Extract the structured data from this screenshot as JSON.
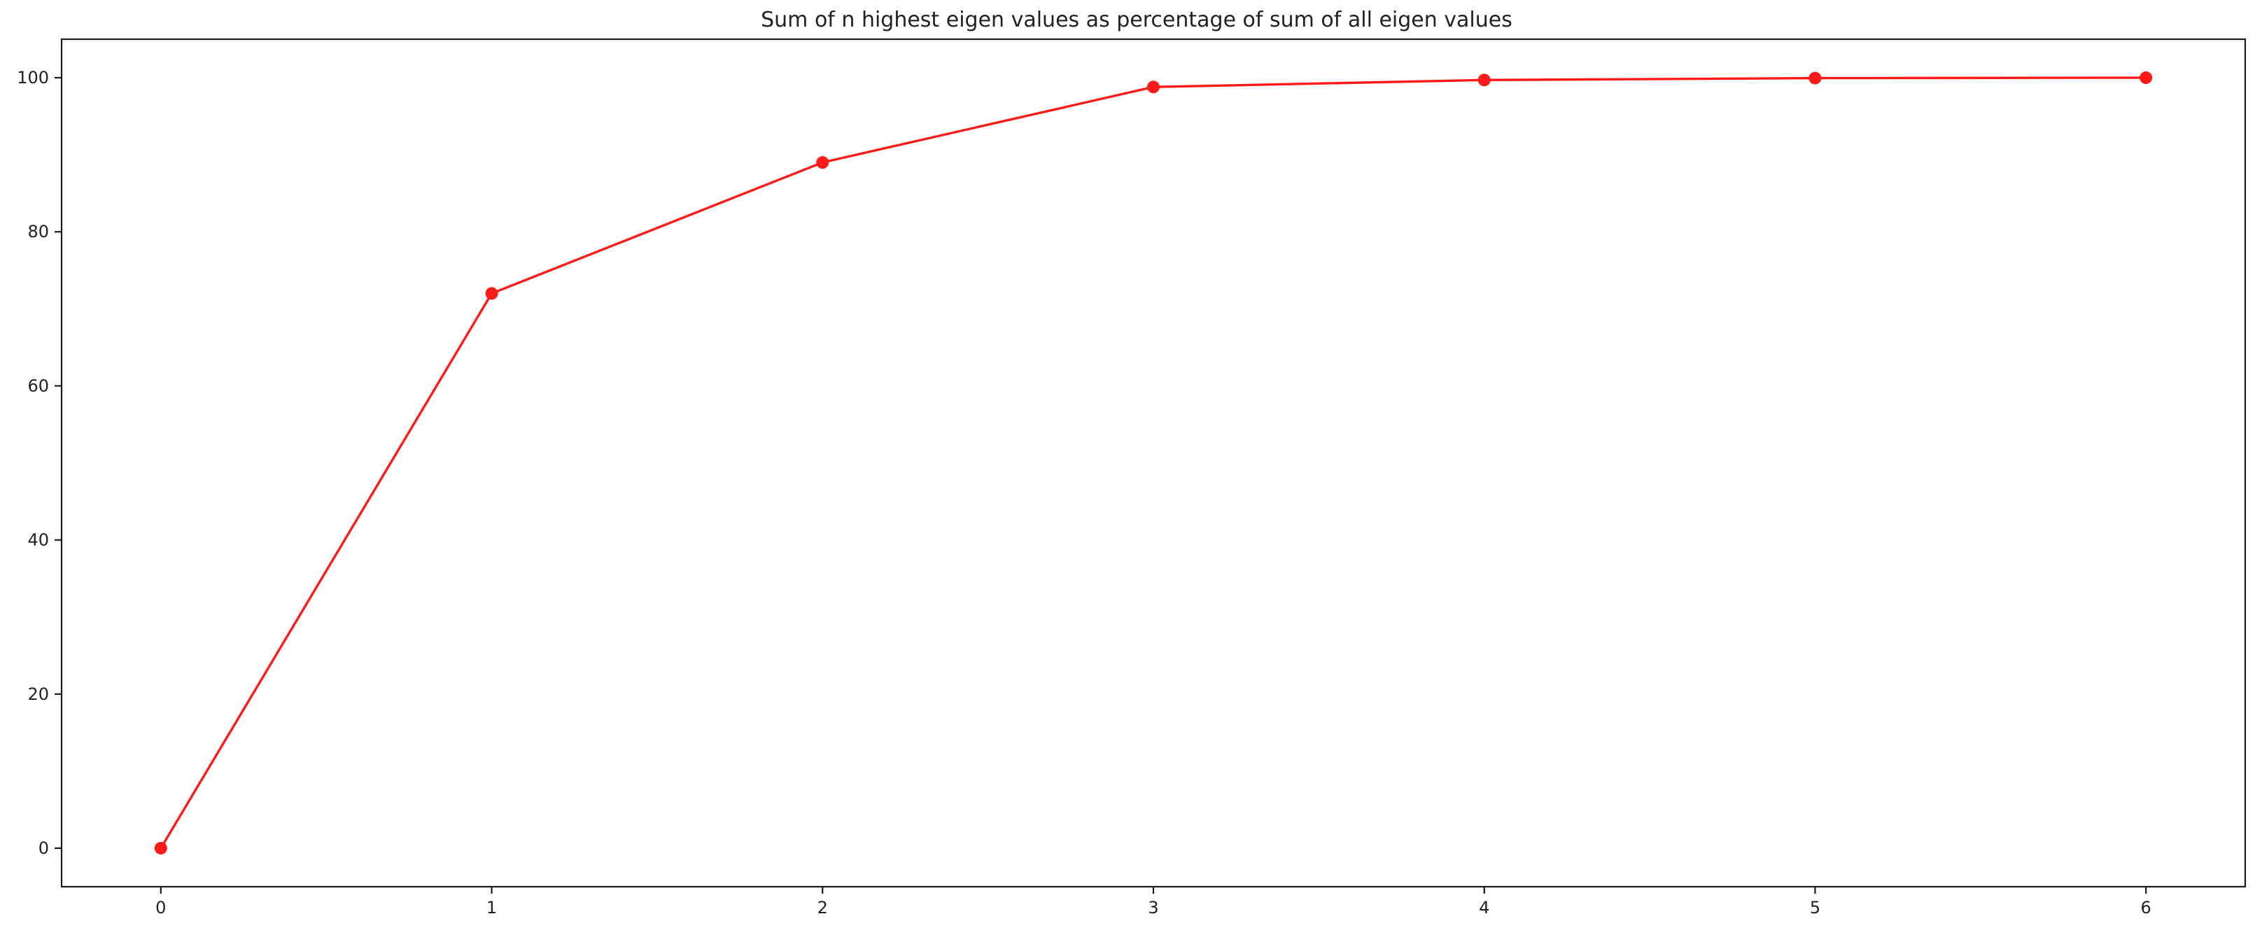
{
  "chart_data": {
    "type": "line",
    "title": "Sum of n highest eigen values as percentage of sum of all eigen values",
    "xlabel": "",
    "ylabel": "",
    "x": [
      0,
      1,
      2,
      3,
      4,
      5,
      6
    ],
    "series": [
      {
        "values": [
          0,
          72.0,
          89.0,
          98.8,
          99.7,
          99.95,
          100.0
        ],
        "color": "#ff1a1a",
        "marker": "circle"
      }
    ],
    "xticks": [
      0,
      1,
      2,
      3,
      4,
      5,
      6
    ],
    "yticks": [
      0,
      20,
      40,
      60,
      80,
      100
    ],
    "xlim": [
      -0.3,
      6.3
    ],
    "ylim": [
      -5,
      105
    ],
    "grid": false,
    "legend": false
  }
}
